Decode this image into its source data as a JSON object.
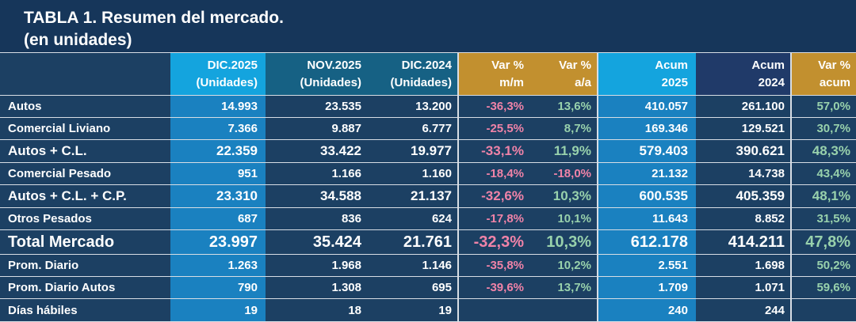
{
  "title": "TABLA 1. Resumen del mercado.",
  "subtitle": "(en unidades)",
  "colors": {
    "page_background": "#16365A",
    "cell_navy": "#1C4063",
    "highlight_column_blue": "#1A81C0",
    "header_cyan": "#14A4DE",
    "header_teal": "#166184",
    "header_gold": "#C2902F",
    "header_dark_navy": "#203A69",
    "positive_green": "#98D1AC",
    "negative_pink": "#F083A8",
    "border_light": "#D8DEE5",
    "text_white": "#FFFFFF"
  },
  "chart_data": {
    "type": "table",
    "title": "TABLA 1. Resumen del mercado.",
    "subtitle": "(en unidades)",
    "columns": [
      {
        "key": "label",
        "line1": "",
        "line2": "",
        "kind": "text"
      },
      {
        "key": "dic2025",
        "line1": "DIC.2025",
        "line2": "(Unidades)",
        "kind": "number"
      },
      {
        "key": "nov2025",
        "line1": "NOV.2025",
        "line2": "(Unidades)",
        "kind": "number"
      },
      {
        "key": "dic2024",
        "line1": "DIC.2024",
        "line2": "(Unidades)",
        "kind": "number"
      },
      {
        "key": "var_mm",
        "line1": "Var %",
        "line2": "m/m",
        "kind": "pct"
      },
      {
        "key": "var_aa",
        "line1": "Var %",
        "line2": "a/a",
        "kind": "pct"
      },
      {
        "key": "acum2025",
        "line1": "Acum",
        "line2": "2025",
        "kind": "number"
      },
      {
        "key": "acum2024",
        "line1": "Acum",
        "line2": "2024",
        "kind": "number"
      },
      {
        "key": "var_acum",
        "line1": "Var %",
        "line2": "acum",
        "kind": "pct"
      }
    ],
    "rows": [
      {
        "style": "normal",
        "cells": {
          "label": "Autos",
          "dic2025": "14.993",
          "nov2025": "23.535",
          "dic2024": "13.200",
          "var_mm": "-36,3%",
          "var_aa": "13,6%",
          "acum2025": "410.057",
          "acum2024": "261.100",
          "var_acum": "57,0%"
        }
      },
      {
        "style": "normal",
        "cells": {
          "label": "Comercial Liviano",
          "dic2025": "7.366",
          "nov2025": "9.887",
          "dic2024": "6.777",
          "var_mm": "-25,5%",
          "var_aa": "8,7%",
          "acum2025": "169.346",
          "acum2024": "129.521",
          "var_acum": "30,7%"
        }
      },
      {
        "style": "subtotal",
        "cells": {
          "label": "Autos + C.L.",
          "dic2025": "22.359",
          "nov2025": "33.422",
          "dic2024": "19.977",
          "var_mm": "-33,1%",
          "var_aa": "11,9%",
          "acum2025": "579.403",
          "acum2024": "390.621",
          "var_acum": "48,3%"
        }
      },
      {
        "style": "normal",
        "cells": {
          "label": "Comercial Pesado",
          "dic2025": "951",
          "nov2025": "1.166",
          "dic2024": "1.160",
          "var_mm": "-18,4%",
          "var_aa": "-18,0%",
          "acum2025": "21.132",
          "acum2024": "14.738",
          "var_acum": "43,4%"
        }
      },
      {
        "style": "subtotal",
        "cells": {
          "label": "Autos + C.L. + C.P.",
          "dic2025": "23.310",
          "nov2025": "34.588",
          "dic2024": "21.137",
          "var_mm": "-32,6%",
          "var_aa": "10,3%",
          "acum2025": "600.535",
          "acum2024": "405.359",
          "var_acum": "48,1%"
        }
      },
      {
        "style": "normal",
        "cells": {
          "label": "Otros Pesados",
          "dic2025": "687",
          "nov2025": "836",
          "dic2024": "624",
          "var_mm": "-17,8%",
          "var_aa": "10,1%",
          "acum2025": "11.643",
          "acum2024": "8.852",
          "var_acum": "31,5%"
        }
      },
      {
        "style": "total",
        "cells": {
          "label": "Total Mercado",
          "dic2025": "23.997",
          "nov2025": "35.424",
          "dic2024": "21.761",
          "var_mm": "-32,3%",
          "var_aa": "10,3%",
          "acum2025": "612.178",
          "acum2024": "414.211",
          "var_acum": "47,8%"
        }
      },
      {
        "style": "normal",
        "cells": {
          "label": "Prom. Diario",
          "dic2025": "1.263",
          "nov2025": "1.968",
          "dic2024": "1.146",
          "var_mm": "-35,8%",
          "var_aa": "10,2%",
          "acum2025": "2.551",
          "acum2024": "1.698",
          "var_acum": "50,2%"
        }
      },
      {
        "style": "normal",
        "cells": {
          "label": "Prom. Diario Autos",
          "dic2025": "790",
          "nov2025": "1.308",
          "dic2024": "695",
          "var_mm": "-39,6%",
          "var_aa": "13,7%",
          "acum2025": "1.709",
          "acum2024": "1.071",
          "var_acum": "59,6%"
        }
      },
      {
        "style": "normal",
        "cells": {
          "label": "Días hábiles",
          "dic2025": "19",
          "nov2025": "18",
          "dic2024": "19",
          "var_mm": "",
          "var_aa": "",
          "acum2025": "240",
          "acum2024": "244",
          "var_acum": ""
        }
      }
    ]
  }
}
